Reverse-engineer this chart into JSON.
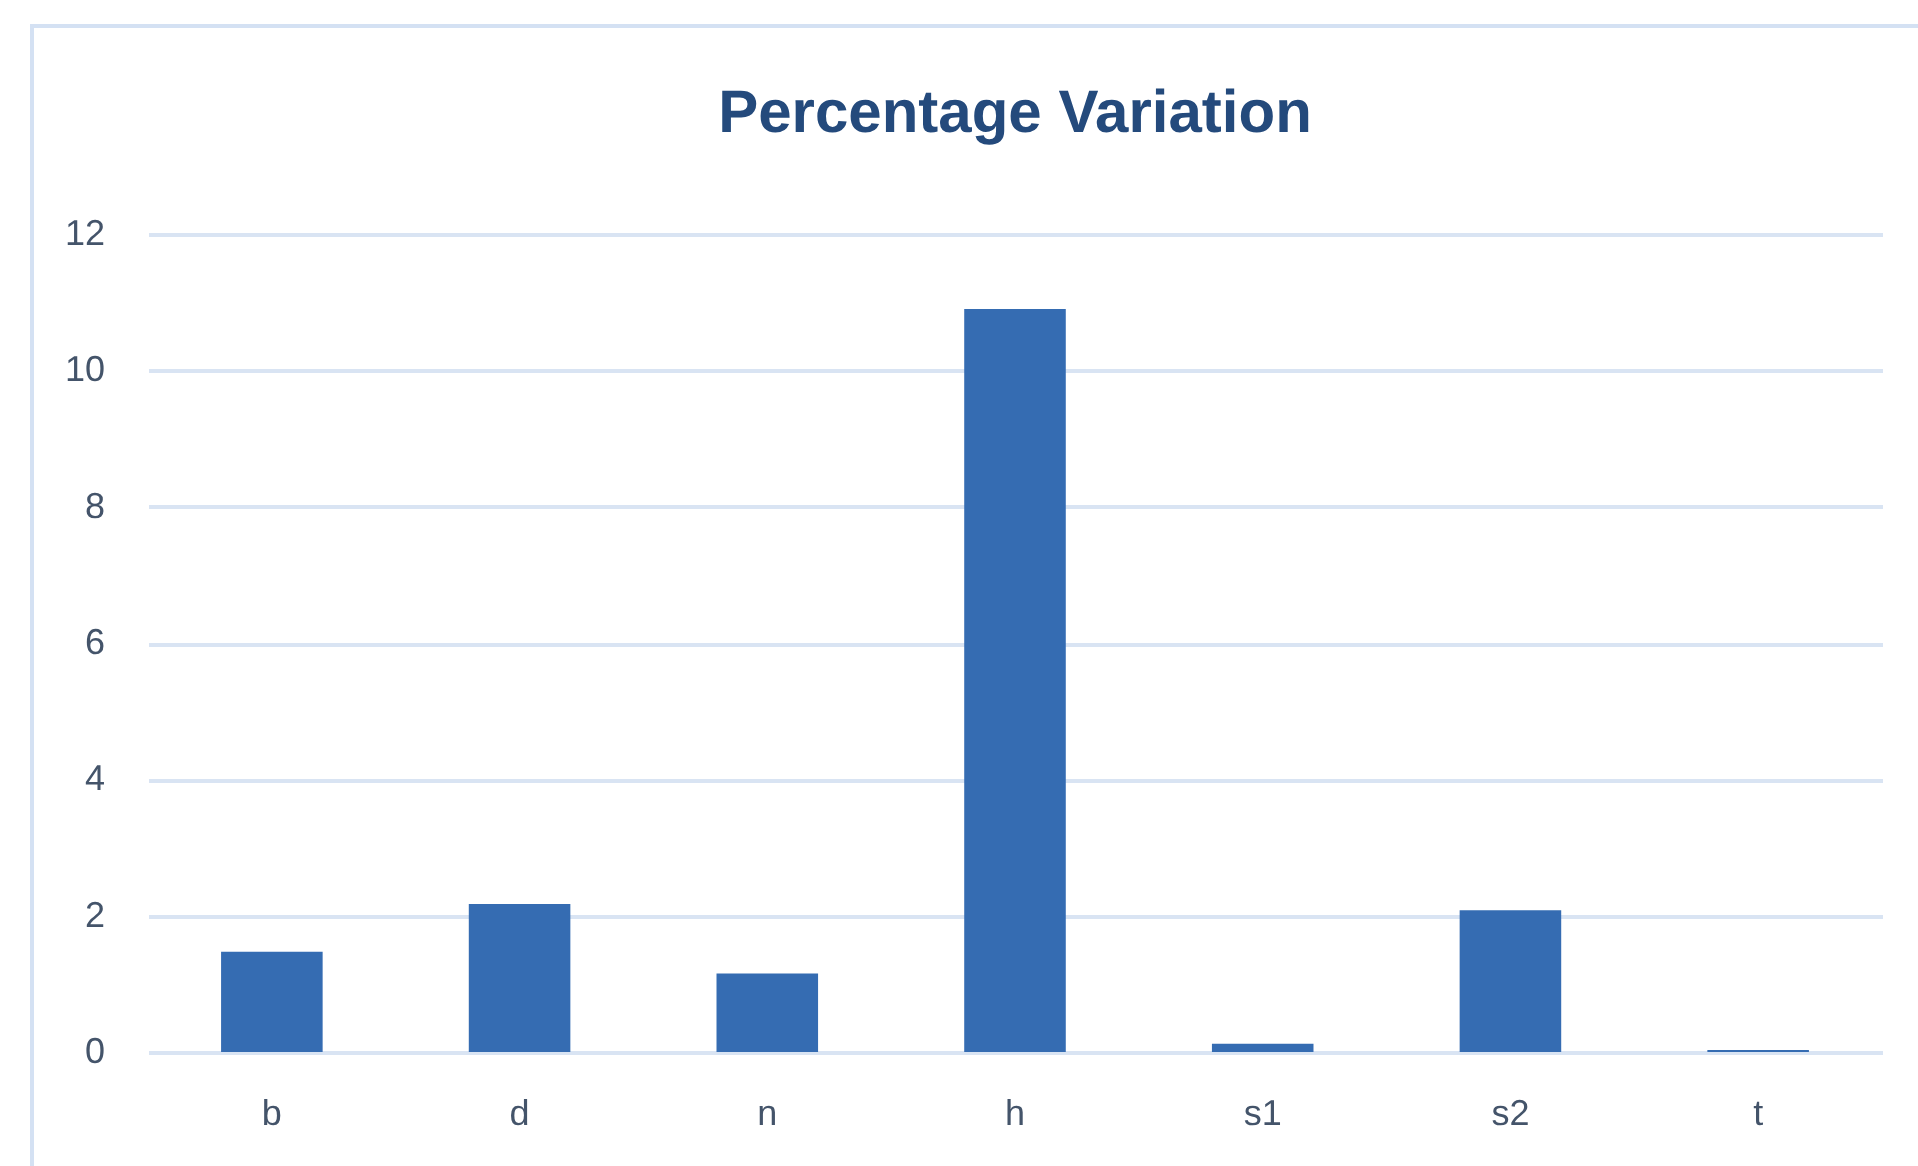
{
  "chart_data": {
    "type": "bar",
    "title": "Percentage Variation",
    "categories": [
      "b",
      "d",
      "n",
      "h",
      "s1",
      "s2",
      "t"
    ],
    "values": [
      1.47,
      2.17,
      1.15,
      10.9,
      0.12,
      2.08,
      0.03
    ],
    "color": "#356cb2",
    "ylim": [
      0,
      12
    ],
    "yticks": [
      0,
      2,
      4,
      6,
      8,
      10,
      12
    ],
    "grid": "y"
  }
}
